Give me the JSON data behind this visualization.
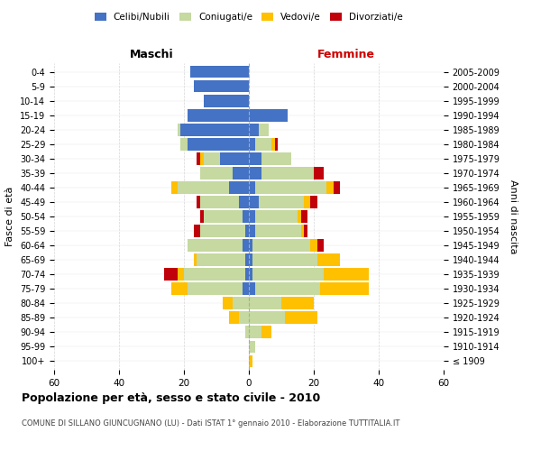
{
  "age_groups": [
    "100+",
    "95-99",
    "90-94",
    "85-89",
    "80-84",
    "75-79",
    "70-74",
    "65-69",
    "60-64",
    "55-59",
    "50-54",
    "45-49",
    "40-44",
    "35-39",
    "30-34",
    "25-29",
    "20-24",
    "15-19",
    "10-14",
    "5-9",
    "0-4"
  ],
  "birth_years": [
    "≤ 1909",
    "1910-1914",
    "1915-1919",
    "1920-1924",
    "1925-1929",
    "1930-1934",
    "1935-1939",
    "1940-1944",
    "1945-1949",
    "1950-1954",
    "1955-1959",
    "1960-1964",
    "1965-1969",
    "1970-1974",
    "1975-1979",
    "1980-1984",
    "1985-1989",
    "1990-1994",
    "1995-1999",
    "2000-2004",
    "2005-2009"
  ],
  "males": {
    "celibi": [
      0,
      0,
      0,
      0,
      0,
      2,
      1,
      1,
      2,
      1,
      2,
      3,
      6,
      5,
      9,
      19,
      21,
      19,
      14,
      17,
      18
    ],
    "coniugati": [
      0,
      0,
      1,
      3,
      5,
      17,
      19,
      15,
      17,
      14,
      12,
      12,
      16,
      10,
      5,
      2,
      1,
      0,
      0,
      0,
      0
    ],
    "vedovi": [
      0,
      0,
      0,
      3,
      3,
      5,
      2,
      1,
      0,
      0,
      0,
      0,
      2,
      0,
      1,
      0,
      0,
      0,
      0,
      0,
      0
    ],
    "divorziati": [
      0,
      0,
      0,
      0,
      0,
      0,
      4,
      0,
      0,
      2,
      1,
      1,
      0,
      0,
      1,
      0,
      0,
      0,
      0,
      0,
      0
    ]
  },
  "females": {
    "nubili": [
      0,
      0,
      0,
      0,
      0,
      2,
      1,
      1,
      1,
      2,
      2,
      3,
      2,
      4,
      4,
      2,
      3,
      12,
      0,
      0,
      0
    ],
    "coniugate": [
      0,
      2,
      4,
      11,
      10,
      20,
      22,
      20,
      18,
      14,
      13,
      14,
      22,
      16,
      9,
      5,
      3,
      0,
      0,
      0,
      0
    ],
    "vedove": [
      1,
      0,
      3,
      10,
      10,
      15,
      14,
      7,
      2,
      1,
      1,
      2,
      2,
      0,
      0,
      1,
      0,
      0,
      0,
      0,
      0
    ],
    "divorziate": [
      0,
      0,
      0,
      0,
      0,
      0,
      0,
      0,
      2,
      1,
      2,
      2,
      2,
      3,
      0,
      1,
      0,
      0,
      0,
      0,
      0
    ]
  },
  "colors": {
    "celibi": "#4472c4",
    "coniugati": "#c5d9a0",
    "vedovi": "#ffc000",
    "divorziati": "#c0000b"
  },
  "title": "Popolazione per età, sesso e stato civile - 2010",
  "subtitle": "COMUNE DI SILLANO GIUNCUGNANO (LU) - Dati ISTAT 1° gennaio 2010 - Elaborazione TUTTITALIA.IT",
  "xlabel_left": "Maschi",
  "xlabel_right": "Femmine",
  "ylabel_left": "Fasce di età",
  "ylabel_right": "Anni di nascita",
  "xlim": 60,
  "bg_color": "#ffffff",
  "grid_color": "#cccccc",
  "bar_height": 0.85
}
